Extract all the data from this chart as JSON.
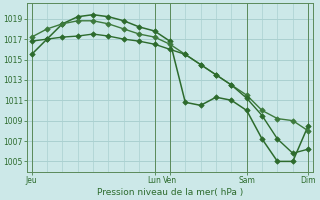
{
  "title": "Pression niveau de la mer( hPa )",
  "bg_color": "#cce8e8",
  "grid_color": "#aad0d0",
  "line_color": "#2d6b2d",
  "ylim": [
    1004,
    1020.5
  ],
  "yticks": [
    1005,
    1007,
    1009,
    1011,
    1013,
    1015,
    1017,
    1019
  ],
  "xtick_positions": [
    0,
    8,
    9,
    14,
    18
  ],
  "xtick_labels": [
    "Jeu",
    "Lun",
    "Ven",
    "Sam",
    "Dim"
  ],
  "vline_positions": [
    0,
    8,
    9,
    14,
    18
  ],
  "line1_x": [
    0,
    1,
    2,
    3,
    4,
    5,
    6,
    7,
    8,
    9,
    10,
    11,
    12,
    13,
    14,
    15,
    16,
    17,
    18
  ],
  "line1_y": [
    1015.5,
    1017.0,
    1018.5,
    1019.2,
    1019.4,
    1019.2,
    1018.8,
    1018.2,
    1017.8,
    1016.8,
    1010.8,
    1010.5,
    1011.3,
    1011.0,
    1010.0,
    1007.2,
    1005.0,
    1005.0,
    1008.5
  ],
  "line2_x": [
    0,
    1,
    2,
    3,
    4,
    5,
    6,
    7,
    8,
    9,
    10,
    11,
    12,
    13,
    14,
    15,
    16,
    17,
    18
  ],
  "line2_y": [
    1017.2,
    1018.0,
    1018.5,
    1018.8,
    1018.8,
    1018.5,
    1018.0,
    1017.5,
    1017.2,
    1016.5,
    1015.5,
    1014.5,
    1013.5,
    1012.5,
    1011.5,
    1010.0,
    1009.2,
    1009.0,
    1008.0
  ],
  "line3_x": [
    0,
    1,
    2,
    3,
    4,
    5,
    6,
    7,
    8,
    9,
    10,
    11,
    12,
    13,
    14,
    15,
    16,
    17,
    18
  ],
  "line3_y": [
    1016.8,
    1017.0,
    1017.2,
    1017.3,
    1017.5,
    1017.3,
    1017.0,
    1016.8,
    1016.5,
    1016.0,
    1015.5,
    1014.5,
    1013.5,
    1012.5,
    1011.2,
    1009.5,
    1007.2,
    1005.8,
    1006.2
  ]
}
